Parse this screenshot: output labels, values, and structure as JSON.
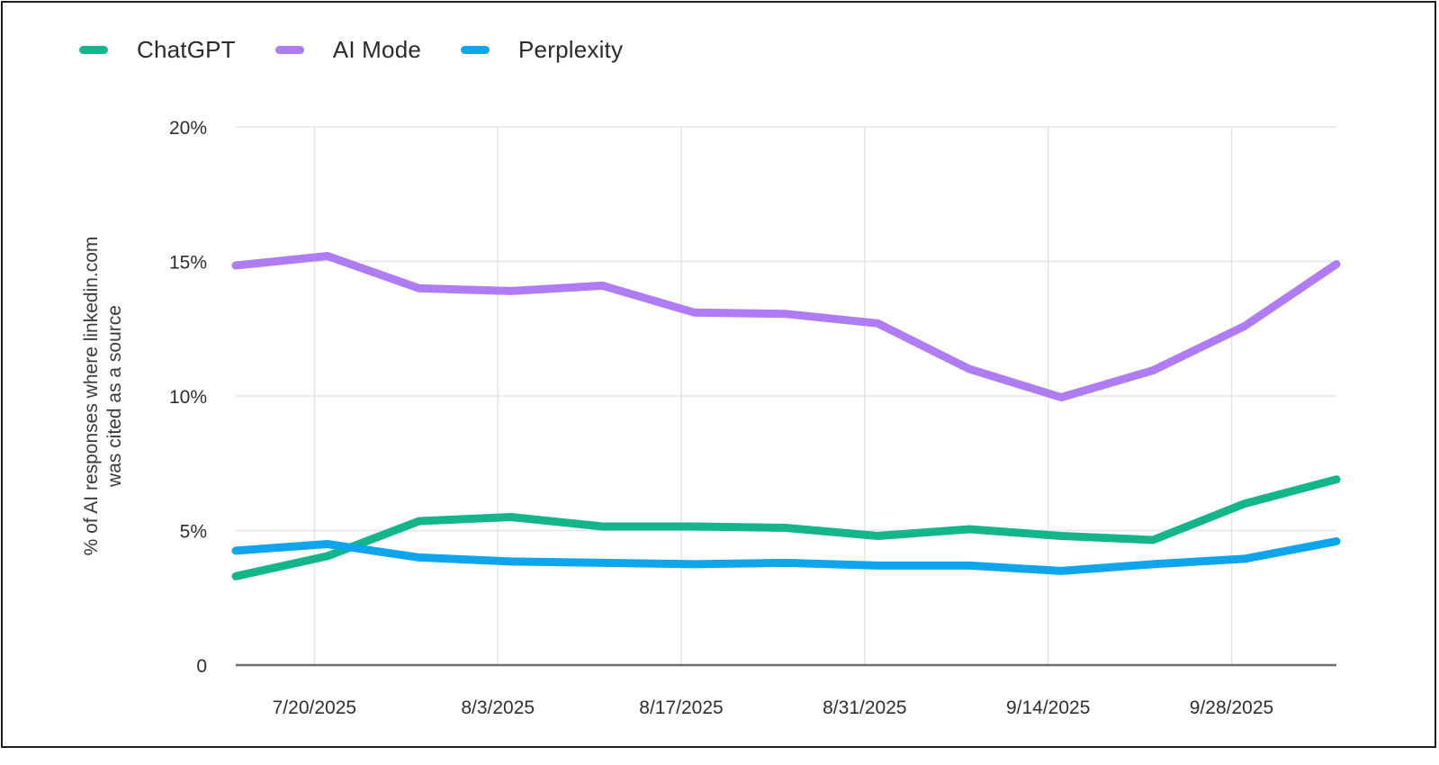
{
  "chart_data": {
    "type": "line",
    "title": "",
    "xlabel": "",
    "ylabel": "% of AI responses where linkedin.com was cited as a source",
    "ylabel_lines": [
      "% of AI responses where linkedin.com",
      "was cited as a source"
    ],
    "ylim": [
      0,
      20
    ],
    "yticks": [
      0,
      5,
      10,
      15,
      20
    ],
    "ytick_labels": [
      "0",
      "5%",
      "10%",
      "15%",
      "20%"
    ],
    "xlim": [
      "2025-07-14",
      "2025-10-06"
    ],
    "xticks": [
      "2025-07-20",
      "2025-08-03",
      "2025-08-17",
      "2025-08-31",
      "2025-09-14",
      "2025-09-28"
    ],
    "xtick_labels": [
      "7/20/2025",
      "8/3/2025",
      "8/17/2025",
      "8/31/2025",
      "9/14/2025",
      "9/28/2025"
    ],
    "grid": true,
    "legend_position": "top-left",
    "x": [
      "2025-07-14",
      "2025-07-21",
      "2025-07-28",
      "2025-08-04",
      "2025-08-11",
      "2025-08-18",
      "2025-08-25",
      "2025-09-01",
      "2025-09-08",
      "2025-09-15",
      "2025-09-22",
      "2025-09-29",
      "2025-10-06"
    ],
    "series": [
      {
        "name": "ChatGPT",
        "color": "#14b58a",
        "values": [
          3.3,
          4.05,
          5.35,
          5.5,
          5.15,
          5.15,
          5.1,
          4.8,
          5.05,
          4.8,
          4.65,
          6.0,
          6.9
        ]
      },
      {
        "name": "AI Mode",
        "color": "#b07cf4",
        "values": [
          14.85,
          15.2,
          14.0,
          13.9,
          14.1,
          13.1,
          13.05,
          12.7,
          11.0,
          9.95,
          10.95,
          12.6,
          14.9
        ]
      },
      {
        "name": "Perplexity",
        "color": "#0ea5ec",
        "values": [
          4.25,
          4.5,
          4.0,
          3.85,
          3.8,
          3.75,
          3.8,
          3.7,
          3.7,
          3.5,
          3.75,
          3.95,
          4.6
        ]
      }
    ]
  }
}
